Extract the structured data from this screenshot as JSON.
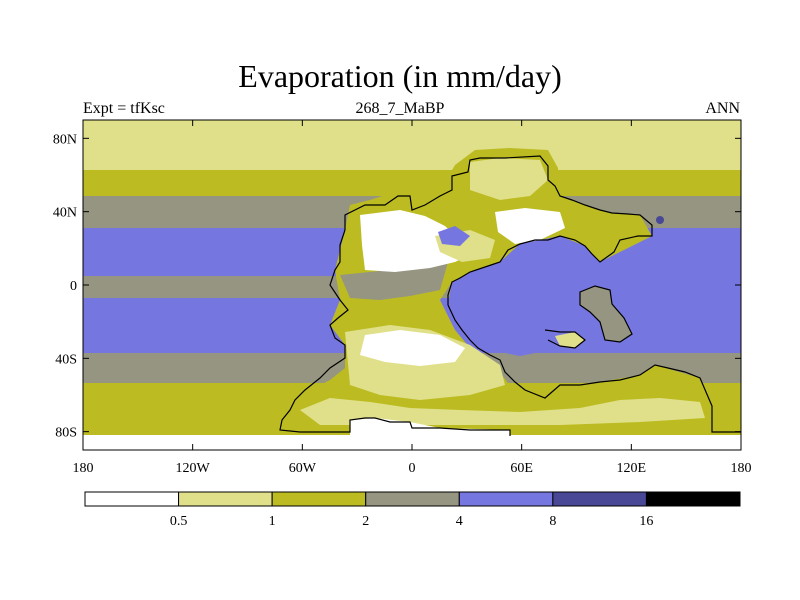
{
  "title": "Evaporation (in mm/day)",
  "subtitle_left": "Expt = tfKsc",
  "subtitle_center": "268_7_MaBP",
  "subtitle_right": "ANN",
  "map": {
    "projection": "cylindrical-equidistant",
    "lon_range": [
      -180,
      180
    ],
    "lat_range": [
      -90,
      90
    ],
    "x_ticks": [
      {
        "value": -180,
        "label": "180"
      },
      {
        "value": -120,
        "label": "120W"
      },
      {
        "value": -60,
        "label": "60W"
      },
      {
        "value": 0,
        "label": "0"
      },
      {
        "value": 60,
        "label": "60E"
      },
      {
        "value": 120,
        "label": "120E"
      },
      {
        "value": 180,
        "label": "180"
      }
    ],
    "y_ticks": [
      {
        "value": 80,
        "label": "80N"
      },
      {
        "value": 40,
        "label": "40N"
      },
      {
        "value": 0,
        "label": "0"
      },
      {
        "value": -40,
        "label": "40S"
      },
      {
        "value": -80,
        "label": "80S"
      }
    ]
  },
  "colorbar": {
    "levels": [
      "0.5",
      "1",
      "2",
      "4",
      "8",
      "16"
    ],
    "colors": [
      "#ffffff",
      "#e0e08a",
      "#bcbc22",
      "#959582",
      "#7676e0",
      "#484896",
      "#000000"
    ]
  }
}
